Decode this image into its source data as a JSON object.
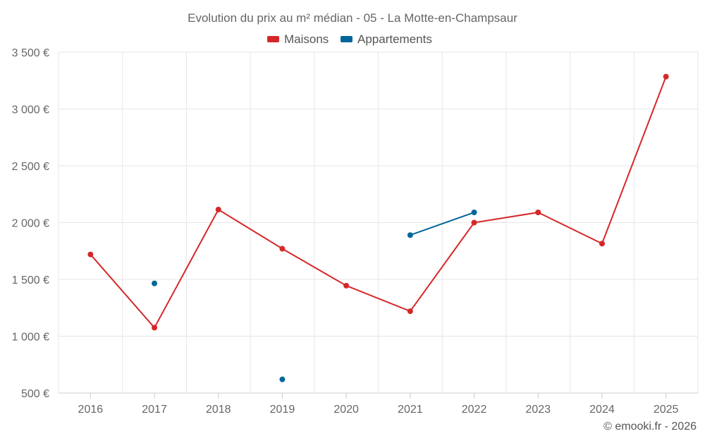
{
  "chart_data": {
    "type": "line",
    "title": "Evolution du prix au m² médian - 05 - La Motte-en-Champsaur",
    "x": [
      "2016",
      "2017",
      "2018",
      "2019",
      "2020",
      "2021",
      "2022",
      "2023",
      "2024",
      "2025"
    ],
    "ylim": [
      500,
      3500
    ],
    "yticks": [
      500,
      1000,
      1500,
      2000,
      2500,
      3000,
      3500
    ],
    "ytick_labels": [
      "500 €",
      "1 000 €",
      "1 500 €",
      "2 000 €",
      "2 500 €",
      "3 000 €",
      "3 500 €"
    ],
    "grid": true,
    "legend_position": "top",
    "series": [
      {
        "name": "Maisons",
        "color": "#d62728",
        "values": [
          1720,
          1075,
          2115,
          1770,
          1445,
          1220,
          2000,
          2090,
          1815,
          3285
        ]
      },
      {
        "name": "Appartements",
        "color": "#006699",
        "values": [
          null,
          1465,
          null,
          620,
          null,
          1890,
          2090,
          null,
          null,
          null
        ]
      }
    ],
    "credit": "© emooki.fr - 2026"
  }
}
